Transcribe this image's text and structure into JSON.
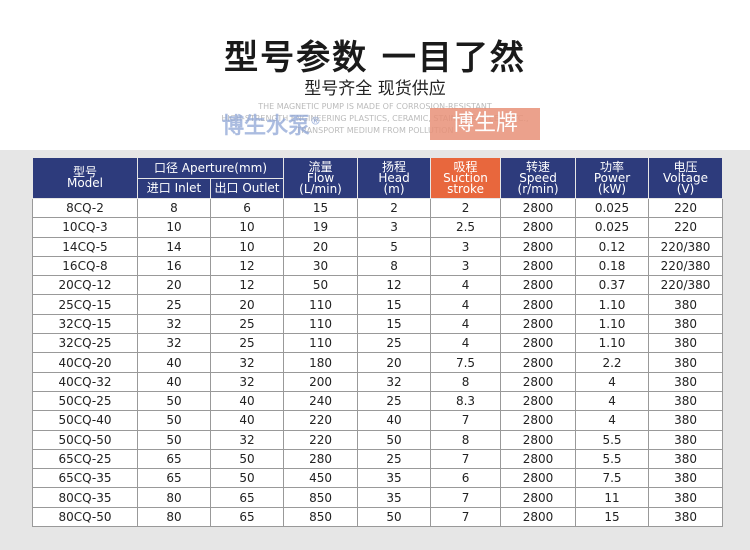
{
  "header": {
    "title": "型号参数 一目了然",
    "subtitle": "型号齐全 现货供应"
  },
  "watermark": {
    "lines": [
      "THE MAGNETIC PUMP IS MADE OF CORROSION-RESISTANT",
      "HIGH-STRENGTH ENGINEERING PLASTICS, CERAMIC, STAINLESS STEEL, ETC.,",
      "TRANSPORT MEDIUM FROM POLLUTION"
    ],
    "brand": "博生水泵",
    "mark": "®",
    "badge": "博生牌"
  },
  "table": {
    "headers": {
      "model": [
        "型号",
        "Model"
      ],
      "aperture": "口径 Aperture(mm)",
      "inlet": "进口 Inlet",
      "outlet": "出口 Outlet",
      "rest": [
        [
          "流量",
          "Flow",
          "(L/min)"
        ],
        [
          "扬程",
          "Head",
          "(m)"
        ],
        [
          "吸程",
          "Suction",
          "stroke"
        ],
        [
          "转速",
          "Speed",
          "(r/min)"
        ],
        [
          "功率",
          "Power",
          "(kW)"
        ],
        [
          "电压",
          "Voltage",
          "(V)"
        ]
      ]
    },
    "rows": [
      [
        "8CQ-2",
        "8",
        "6",
        "15",
        "2",
        "2",
        "2800",
        "0.025",
        "220"
      ],
      [
        "10CQ-3",
        "10",
        "10",
        "19",
        "3",
        "2.5",
        "2800",
        "0.025",
        "220"
      ],
      [
        "14CQ-5",
        "14",
        "10",
        "20",
        "5",
        "3",
        "2800",
        "0.12",
        "220/380"
      ],
      [
        "16CQ-8",
        "16",
        "12",
        "30",
        "8",
        "3",
        "2800",
        "0.18",
        "220/380"
      ],
      [
        "20CQ-12",
        "20",
        "12",
        "50",
        "12",
        "4",
        "2800",
        "0.37",
        "220/380"
      ],
      [
        "25CQ-15",
        "25",
        "20",
        "110",
        "15",
        "4",
        "2800",
        "1.10",
        "380"
      ],
      [
        "32CQ-15",
        "32",
        "25",
        "110",
        "15",
        "4",
        "2800",
        "1.10",
        "380"
      ],
      [
        "32CQ-25",
        "32",
        "25",
        "110",
        "25",
        "4",
        "2800",
        "1.10",
        "380"
      ],
      [
        "40CQ-20",
        "40",
        "32",
        "180",
        "20",
        "7.5",
        "2800",
        "2.2",
        "380"
      ],
      [
        "40CQ-32",
        "40",
        "32",
        "200",
        "32",
        "8",
        "2800",
        "4",
        "380"
      ],
      [
        "50CQ-25",
        "50",
        "40",
        "240",
        "25",
        "8.3",
        "2800",
        "4",
        "380"
      ],
      [
        "50CQ-40",
        "50",
        "40",
        "220",
        "40",
        "7",
        "2800",
        "4",
        "380"
      ],
      [
        "50CQ-50",
        "50",
        "32",
        "220",
        "50",
        "8",
        "2800",
        "5.5",
        "380"
      ],
      [
        "65CQ-25",
        "65",
        "50",
        "280",
        "25",
        "7",
        "2800",
        "5.5",
        "380"
      ],
      [
        "65CQ-35",
        "65",
        "50",
        "450",
        "35",
        "6",
        "2800",
        "7.5",
        "380"
      ],
      [
        "80CQ-35",
        "80",
        "65",
        "850",
        "35",
        "7",
        "2800",
        "11",
        "380"
      ],
      [
        "80CQ-50",
        "80",
        "65",
        "850",
        "50",
        "7",
        "2800",
        "15",
        "380"
      ]
    ]
  }
}
